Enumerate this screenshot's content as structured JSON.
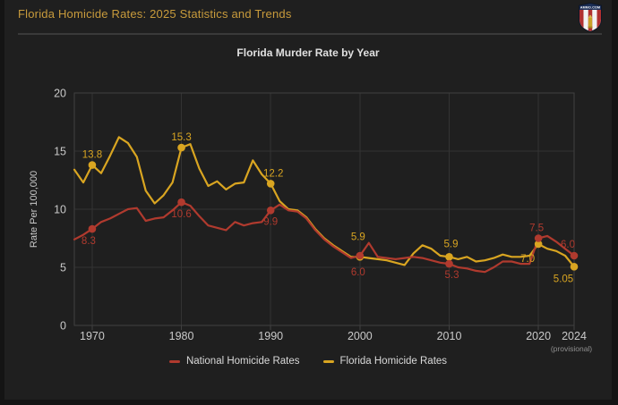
{
  "page": {
    "header_title": "Florida Homicide Rates: 2025 Statistics and Trends",
    "logo": {
      "name": "ammo-com-shield-logo",
      "text": "AMMO.COM"
    }
  },
  "theme": {
    "frame": "#141414",
    "bg": "#1f1f1f",
    "gold": "#c89b3c",
    "divider": "#3a3a3a",
    "title-text": "#e0e0e0",
    "axis-text": "#c9c9c9",
    "muted-text": "#8f8f8f",
    "grid": "#333333",
    "plot-border": "#404040",
    "legend-text": "#d9d9d9",
    "national-red": "#b03a2e",
    "florida-gold": "#d9a521"
  },
  "chart_data": {
    "type": "line",
    "title": "Florida Murder Rate by Year",
    "xlabel": "",
    "ylabel": "Rate Per 100,000",
    "ylim": [
      0,
      20
    ],
    "yticks": [
      0,
      5,
      10,
      15,
      20
    ],
    "x_start": 1968,
    "x_end": 2024,
    "grid": true,
    "legend_position": "bottom",
    "xticks": [
      {
        "label": "1970",
        "year": 1970
      },
      {
        "label": "1980",
        "year": 1980
      },
      {
        "label": "1990",
        "year": 1990
      },
      {
        "label": "2000",
        "year": 2000
      },
      {
        "label": "2010",
        "year": 2010
      },
      {
        "label": "2020",
        "year": 2020
      },
      {
        "label": "2024",
        "year": 2024,
        "sublabel": "(provisional)"
      }
    ],
    "years": [
      1968,
      1969,
      1970,
      1971,
      1972,
      1973,
      1974,
      1975,
      1976,
      1977,
      1978,
      1979,
      1980,
      1981,
      1982,
      1983,
      1984,
      1985,
      1986,
      1987,
      1988,
      1989,
      1990,
      1991,
      1992,
      1993,
      1994,
      1995,
      1996,
      1997,
      1998,
      1999,
      2000,
      2001,
      2002,
      2003,
      2004,
      2005,
      2006,
      2007,
      2008,
      2009,
      2010,
      2011,
      2012,
      2013,
      2014,
      2015,
      2016,
      2017,
      2018,
      2019,
      2020,
      2021,
      2022,
      2023,
      2024
    ],
    "series": [
      {
        "name": "Florida Homicide Rates",
        "color": "#d9a521",
        "values": [
          13.4,
          12.3,
          13.8,
          13.1,
          14.6,
          16.2,
          15.7,
          14.5,
          11.6,
          10.5,
          11.2,
          12.3,
          15.3,
          15.6,
          13.5,
          12.0,
          12.4,
          11.7,
          12.2,
          12.3,
          14.2,
          13.0,
          12.2,
          10.7,
          10.0,
          9.9,
          9.3,
          8.3,
          7.5,
          6.9,
          6.4,
          5.9,
          5.9,
          5.8,
          5.7,
          5.6,
          5.4,
          5.2,
          6.2,
          6.9,
          6.6,
          6.0,
          5.9,
          5.7,
          5.9,
          5.5,
          5.6,
          5.8,
          6.1,
          5.9,
          5.9,
          6.0,
          7.0,
          6.6,
          6.4,
          6.0,
          5.05
        ],
        "labeled_points": [
          {
            "year": 1970,
            "label": "13.8",
            "dx": 0,
            "dy": -8
          },
          {
            "year": 1980,
            "label": "15.3",
            "dx": 0,
            "dy": -8
          },
          {
            "year": 1990,
            "label": "12.2",
            "dx": 3,
            "dy": -8
          },
          {
            "year": 2000,
            "label": "5.9",
            "dx": -2,
            "dy": -19
          },
          {
            "year": 2010,
            "label": "5.9",
            "dx": 2,
            "dy": -11
          },
          {
            "year": 2020,
            "label": "7.0",
            "dx": -12,
            "dy": 20
          },
          {
            "year": 2024,
            "label": "5.05",
            "dx": -12,
            "dy": 17
          }
        ]
      },
      {
        "name": "National Homicide Rates",
        "color": "#b03a2e",
        "values": [
          7.4,
          7.8,
          8.3,
          8.9,
          9.2,
          9.6,
          10.0,
          10.1,
          9.0,
          9.2,
          9.3,
          9.9,
          10.6,
          10.3,
          9.4,
          8.6,
          8.4,
          8.2,
          8.9,
          8.6,
          8.8,
          8.9,
          9.9,
          10.4,
          9.9,
          9.8,
          9.2,
          8.2,
          7.4,
          6.8,
          6.3,
          5.8,
          6.0,
          7.1,
          5.9,
          5.8,
          5.7,
          5.8,
          5.9,
          5.8,
          5.6,
          5.4,
          5.3,
          5.0,
          4.9,
          4.7,
          4.6,
          5.0,
          5.5,
          5.5,
          5.3,
          5.3,
          7.5,
          7.7,
          7.2,
          6.6,
          6.0
        ],
        "labeled_points": [
          {
            "year": 1970,
            "label": "8.3",
            "dx": -4,
            "dy": 17
          },
          {
            "year": 1980,
            "label": "10.6",
            "dx": 0,
            "dy": 17
          },
          {
            "year": 1990,
            "label": "9.9",
            "dx": 0,
            "dy": 16
          },
          {
            "year": 2000,
            "label": "6.0",
            "dx": -2,
            "dy": 22
          },
          {
            "year": 2010,
            "label": "5.3",
            "dx": 3,
            "dy": 16
          },
          {
            "year": 2020,
            "label": "7.5",
            "dx": -2,
            "dy": -8
          },
          {
            "year": 2024,
            "label": "6.0",
            "dx": -7,
            "dy": -9
          }
        ]
      }
    ],
    "legend": [
      "National Homicide Rates",
      "Florida Homicide Rates"
    ]
  }
}
